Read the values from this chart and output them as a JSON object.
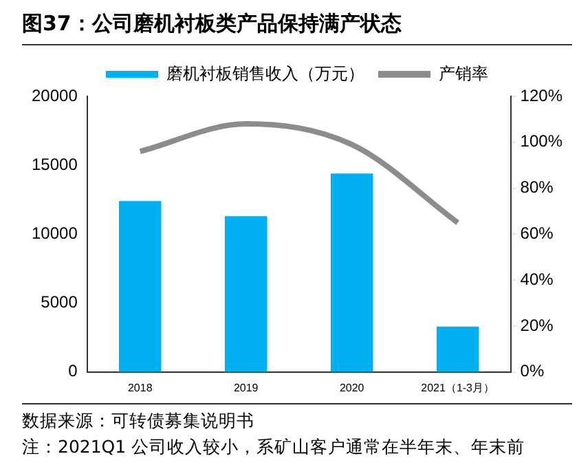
{
  "chart_data": {
    "type": "bar",
    "title": "图37：公司磨机衬板类产品保持满产状态",
    "categories": [
      "2018",
      "2019",
      "2020",
      "2021（1-3月）"
    ],
    "series": [
      {
        "name": "磨机衬板销售收入（万元）",
        "color": "#00b0f0",
        "values": [
          12400,
          11300,
          14400,
          3300
        ]
      },
      {
        "name": "产销率",
        "type": "line",
        "axis": "y2",
        "color": "#8c8c8c",
        "values": [
          96,
          108,
          99,
          65
        ]
      }
    ],
    "ylim": [
      0,
      20000
    ],
    "yticks": [
      0,
      5000,
      10000,
      15000,
      20000
    ],
    "y2lim": [
      0,
      120
    ],
    "y2ticks": [
      {
        "value": 0,
        "label": "0%"
      },
      {
        "value": 20,
        "label": "20%"
      },
      {
        "value": 40,
        "label": "40%"
      },
      {
        "value": 60,
        "label": "60%"
      },
      {
        "value": 80,
        "label": "80%"
      },
      {
        "value": 100,
        "label": "100%"
      },
      {
        "value": 120,
        "label": "120%"
      }
    ],
    "grid": false,
    "legend": "top",
    "marker": "none",
    "annotations": [
      "数据来源：可转债募集说明书",
      "注：2021Q1 公司收入较小，系矿山客户通常在半年末、年末前"
    ]
  }
}
